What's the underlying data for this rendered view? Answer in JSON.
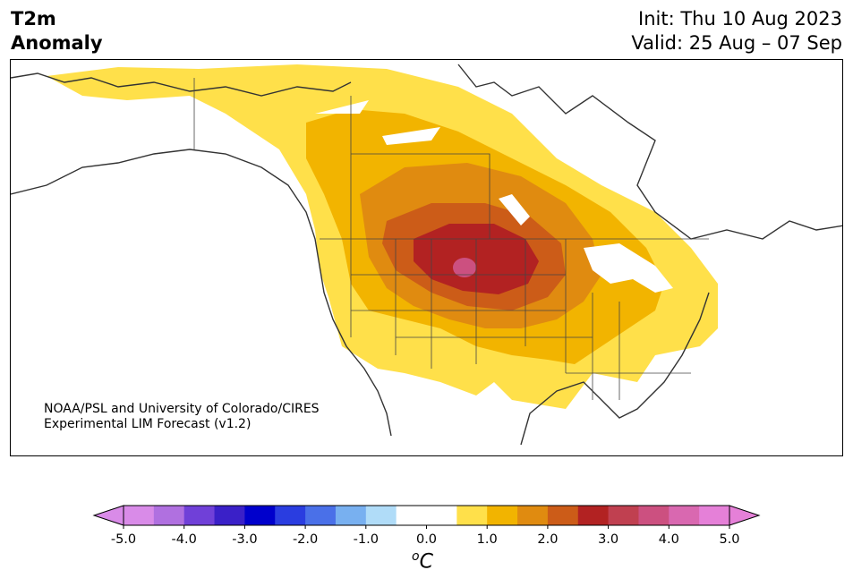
{
  "header": {
    "title_left": "T2m\nAnomaly",
    "init_line": "Init: Thu 10 Aug 2023",
    "valid_line": "Valid: 25 Aug – 07 Sep"
  },
  "credit": {
    "line1": "NOAA/PSL and University of Colorado/CIRES",
    "line2": "Experimental LIM Forecast (v1.2)"
  },
  "colorbar": {
    "ticks": [
      "-5.0",
      "-4.0",
      "-3.0",
      "-2.0",
      "-1.0",
      "0.0",
      "1.0",
      "2.0",
      "3.0",
      "4.0",
      "5.0"
    ],
    "unit_base": "C",
    "unit_sup": "o",
    "colors": [
      "#d98be8",
      "#b070e0",
      "#7040d8",
      "#3a20c8",
      "#0000cc",
      "#2a3de0",
      "#4a70e8",
      "#78b0f0",
      "#b0dcf8",
      "#ffffff",
      "#ffffff",
      "#ffe04a",
      "#f2b400",
      "#e08b10",
      "#cc5c18",
      "#b22222",
      "#c04050",
      "#cc5080",
      "#d968b0",
      "#e580d8"
    ],
    "extend_low_color": "#d98be8",
    "extend_high_color": "#e580d8"
  },
  "map": {
    "anomaly_colors": {
      "level_0_5": "#ffe04a",
      "level_1_0": "#f2b400",
      "level_1_5": "#e08b10",
      "level_2_0": "#cc5c18",
      "level_2_5": "#b22222",
      "level_3_5": "#cc5080"
    }
  }
}
